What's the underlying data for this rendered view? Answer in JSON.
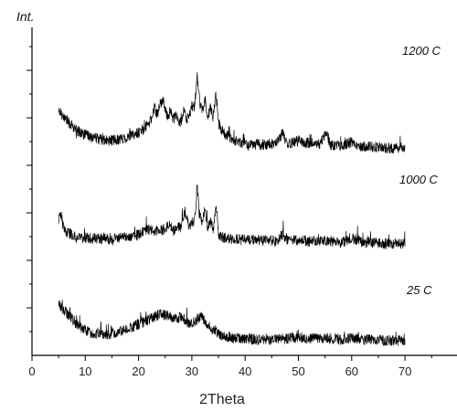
{
  "chart_data": {
    "type": "line",
    "title": "",
    "xlabel": "2Theta",
    "ylabel": "Int.",
    "xlim": [
      0,
      80
    ],
    "xticks": [
      0,
      10,
      20,
      30,
      40,
      50,
      60,
      70
    ],
    "tick_labels": [
      "0",
      "10",
      "20",
      "30",
      "40",
      "50",
      "60",
      "70"
    ],
    "grid": false,
    "series": [
      {
        "name": "1200 C",
        "color": "#000000",
        "x": [
          5,
          6,
          7,
          8,
          10,
          12,
          14,
          16,
          18,
          20,
          21,
          22,
          22.5,
          23,
          23.5,
          24,
          24.5,
          25,
          25.5,
          26,
          26.5,
          27,
          27.5,
          28,
          28.5,
          29,
          29.5,
          30,
          30.5,
          31,
          31.5,
          32,
          32.5,
          33,
          33.5,
          34,
          34.5,
          35,
          35.5,
          36,
          37,
          38,
          39,
          40,
          42,
          44,
          46,
          47,
          48,
          50,
          52,
          54,
          55.3,
          56,
          58,
          60,
          62,
          64,
          66,
          68,
          70
        ],
        "y": [
          0.56,
          0.5,
          0.45,
          0.4,
          0.35,
          0.32,
          0.3,
          0.31,
          0.33,
          0.37,
          0.4,
          0.45,
          0.5,
          0.58,
          0.52,
          0.6,
          0.66,
          0.55,
          0.5,
          0.56,
          0.48,
          0.52,
          0.45,
          0.47,
          0.55,
          0.48,
          0.5,
          0.6,
          0.58,
          0.84,
          0.62,
          0.55,
          0.65,
          0.5,
          0.58,
          0.5,
          0.72,
          0.45,
          0.4,
          0.36,
          0.33,
          0.3,
          0.29,
          0.28,
          0.27,
          0.27,
          0.28,
          0.37,
          0.27,
          0.3,
          0.28,
          0.27,
          0.38,
          0.26,
          0.26,
          0.29,
          0.25,
          0.25,
          0.24,
          0.24,
          0.24
        ]
      },
      {
        "name": "1000 C",
        "color": "#000000",
        "x": [
          5,
          5.3,
          6,
          7,
          8,
          10,
          12,
          14,
          16,
          18,
          20,
          21,
          22,
          23,
          24,
          25,
          25.8,
          26.5,
          27,
          28,
          28.3,
          28.8,
          29.5,
          30,
          30.5,
          31,
          31.4,
          32,
          32.4,
          33,
          33.5,
          34,
          34.6,
          35,
          36,
          38,
          40,
          42,
          44,
          46,
          47,
          48,
          50,
          52,
          54,
          56,
          58,
          60,
          62,
          64,
          66,
          68,
          70
        ],
        "y": [
          0.44,
          0.52,
          0.36,
          0.34,
          0.31,
          0.3,
          0.29,
          0.29,
          0.3,
          0.31,
          0.33,
          0.35,
          0.37,
          0.35,
          0.37,
          0.36,
          0.42,
          0.36,
          0.38,
          0.39,
          0.48,
          0.52,
          0.4,
          0.42,
          0.45,
          0.74,
          0.5,
          0.42,
          0.54,
          0.38,
          0.44,
          0.36,
          0.56,
          0.33,
          0.3,
          0.29,
          0.28,
          0.28,
          0.28,
          0.27,
          0.33,
          0.28,
          0.28,
          0.27,
          0.27,
          0.27,
          0.26,
          0.3,
          0.26,
          0.26,
          0.25,
          0.25,
          0.25
        ]
      },
      {
        "name": "25 C",
        "color": "#000000",
        "x": [
          5,
          6,
          7,
          8,
          9,
          10,
          11,
          12,
          13,
          14,
          16,
          18,
          20,
          22,
          23,
          24,
          25,
          26,
          27,
          28,
          29,
          30,
          31,
          32,
          33,
          34,
          35,
          36,
          37,
          38,
          40,
          42,
          44,
          46,
          48,
          50,
          52,
          54,
          56,
          58,
          60,
          62,
          64,
          66,
          68,
          70
        ],
        "y": [
          0.55,
          0.5,
          0.45,
          0.4,
          0.36,
          0.33,
          0.31,
          0.3,
          0.29,
          0.29,
          0.31,
          0.34,
          0.38,
          0.42,
          0.44,
          0.46,
          0.46,
          0.44,
          0.42,
          0.44,
          0.4,
          0.38,
          0.42,
          0.44,
          0.38,
          0.33,
          0.3,
          0.28,
          0.27,
          0.26,
          0.26,
          0.25,
          0.25,
          0.25,
          0.26,
          0.27,
          0.26,
          0.26,
          0.26,
          0.25,
          0.26,
          0.25,
          0.25,
          0.24,
          0.24,
          0.24
        ]
      }
    ]
  }
}
